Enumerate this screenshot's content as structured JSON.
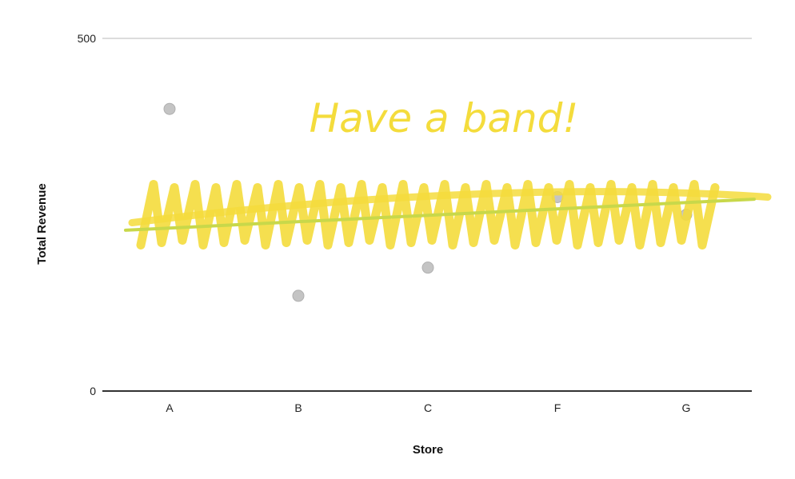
{
  "chart_data": {
    "type": "scatter",
    "xlabel": "Store",
    "ylabel": "Total Revenue",
    "categories": [
      "A",
      "B",
      "C",
      "F",
      "G"
    ],
    "values": [
      400,
      135,
      175,
      275,
      250
    ],
    "ylim": [
      0,
      500
    ],
    "yticks": [
      0,
      500
    ],
    "grid": true,
    "point_color": "#c4c4c4",
    "annotation": {
      "text": "Have a band!",
      "color": "#f4dc3c",
      "band_center": 250,
      "trend_line": {
        "from": [
          "A",
          228
        ],
        "to": [
          "G",
          272
        ],
        "color": "#c8d84a"
      }
    }
  }
}
